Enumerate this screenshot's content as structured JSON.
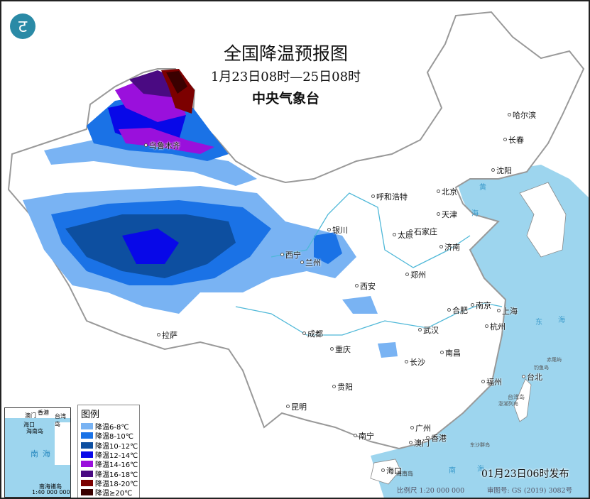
{
  "header": {
    "title": "全国降温预报图",
    "period": "1月23日08时—25日08时",
    "agency": "中央气象台"
  },
  "logo": {
    "icon": "cma-logo-icon",
    "color": "#2a8aa6"
  },
  "legend": {
    "title": "图例",
    "items": [
      {
        "label": "降温6-8℃",
        "color": "#79b3f3"
      },
      {
        "label": "降温8-10℃",
        "color": "#1a72e6"
      },
      {
        "label": "降温10-12℃",
        "color": "#0d4fa0"
      },
      {
        "label": "降温12-14℃",
        "color": "#0808e8"
      },
      {
        "label": "降温14-16℃",
        "color": "#9a10dc"
      },
      {
        "label": "降温16-18℃",
        "color": "#4a0a82"
      },
      {
        "label": "降温18-20℃",
        "color": "#7c0000"
      },
      {
        "label": "降温≥20℃",
        "color": "#3a0000"
      }
    ]
  },
  "cities": [
    {
      "name": "乌鲁木齐"
    },
    {
      "name": "哈尔滨"
    },
    {
      "name": "长春"
    },
    {
      "name": "沈阳"
    },
    {
      "name": "北京"
    },
    {
      "name": "天津"
    },
    {
      "name": "呼和浩特"
    },
    {
      "name": "石家庄"
    },
    {
      "name": "太原"
    },
    {
      "name": "济南"
    },
    {
      "name": "银川"
    },
    {
      "name": "西宁"
    },
    {
      "name": "兰州"
    },
    {
      "name": "郑州"
    },
    {
      "name": "西安"
    },
    {
      "name": "合肥"
    },
    {
      "name": "南京"
    },
    {
      "name": "上海"
    },
    {
      "name": "杭州"
    },
    {
      "name": "武汉"
    },
    {
      "name": "成都"
    },
    {
      "name": "重庆"
    },
    {
      "name": "拉萨"
    },
    {
      "name": "南昌"
    },
    {
      "name": "长沙"
    },
    {
      "name": "贵阳"
    },
    {
      "name": "福州"
    },
    {
      "name": "台北"
    },
    {
      "name": "昆明"
    },
    {
      "name": "南宁"
    },
    {
      "name": "广州"
    },
    {
      "name": "香港"
    },
    {
      "name": "澳门"
    },
    {
      "name": "海口"
    }
  ],
  "seas": {
    "huang": "黄",
    "hai1": "海",
    "dong": "东",
    "hai2": "海",
    "nan": "南",
    "hai3": "海",
    "island_tw": "台湾岛",
    "island_hn": "海南岛",
    "dongsha": "东沙群岛",
    "diaoyu": "钓鱼岛",
    "chiwei": "赤尾屿",
    "penghu": "澎湖列岛"
  },
  "inset": {
    "south_sea": "南海",
    "islands": "南海诸岛",
    "scale": "1:40 000 000",
    "haikou": "海口",
    "hainan": "海南岛",
    "taiwan": "台湾岛",
    "macao": "澳门",
    "hongkong": "香港"
  },
  "footer": {
    "issued": "01月23日06时发布",
    "scale": "比例尺 1:20 000 000",
    "review": "审图号: GS (2019) 3082号"
  },
  "colors": {
    "sea": "#9dd5ee",
    "land": "#ffffff",
    "river": "#4fb8d8"
  }
}
